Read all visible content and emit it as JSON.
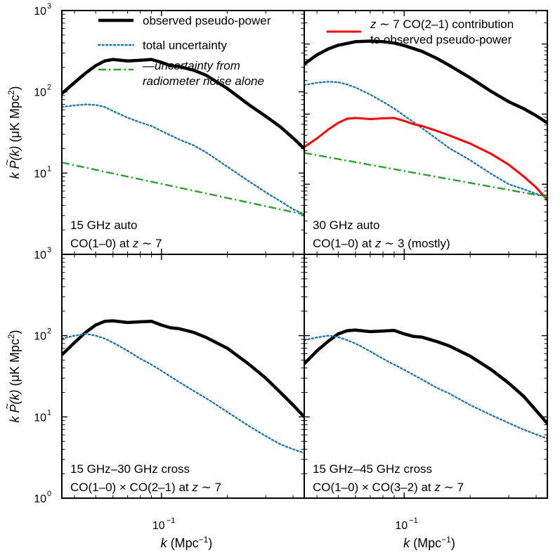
{
  "chart_data": {
    "type": "line",
    "layout": "2x2 grid of log-log panels, shared x axis per column, shared y axis per row",
    "xscale": "log",
    "yscale": "log",
    "xlim": [
      0.035,
      0.45
    ],
    "xlabel_main": "k",
    "xlabel_unit": "(Mpc",
    "xlabel_sup": "−1",
    "xlabel_close": ")",
    "ylabel_main": "k",
    "ylabel_sym": "P",
    "ylabel_arg": "(k)",
    "ylabel_unit": "(μK Mpc",
    "ylabel_sup": "2",
    "ylabel_close": ")",
    "x_tick_label_base": "10",
    "x_tick_label_exp": "−1",
    "x_tick_value": 0.1,
    "colors": {
      "observed": "#000000",
      "uncertainty": "#1f77b4",
      "noise": "#2ca02c",
      "contribution": "#ff0000"
    },
    "legend_left": {
      "position": "top-right of panel 1",
      "entries": [
        {
          "label": "observed pseudo-power",
          "style": "solid-thick",
          "color": "#000000"
        },
        {
          "label": "total uncertainty",
          "style": "dotted",
          "color": "#1f77b4"
        },
        {
          "label_line1": "—uncertainty from",
          "label_line2": "radiometer noise alone",
          "italic": true,
          "style": "dashdot",
          "color": "#2ca02c"
        }
      ]
    },
    "legend_right": {
      "position": "top-right of panel 2",
      "entry": {
        "line1_z": "z",
        "line1_rest": " ∼ 7 CO(2–1) contribution",
        "line2": "to observed pseudo-power",
        "style": "solid",
        "color": "#ff0000"
      }
    },
    "panels": [
      {
        "id": "15ghz-auto",
        "ylim": [
          1,
          1000
        ],
        "y_ticks": [
          {
            "base": "10",
            "exp": "1",
            "value": 10
          },
          {
            "base": "10",
            "exp": "2",
            "value": 100
          },
          {
            "base": "10",
            "exp": "3",
            "value": 1000
          }
        ],
        "label_line1": "15 GHz auto",
        "label_line2_pre": "CO(1–0) at ",
        "label_line2_z": "z",
        "label_line2_post": " ∼ 7",
        "series": [
          {
            "name": "observed pseudo-power",
            "color": "#000000",
            "style": "solid-thick",
            "x": [
              0.035,
              0.04,
              0.045,
              0.05,
              0.055,
              0.06,
              0.07,
              0.08,
              0.09,
              0.1,
              0.11,
              0.12,
              0.14,
              0.16,
              0.2,
              0.25,
              0.3,
              0.35,
              0.4,
              0.45
            ],
            "y": [
              95,
              130,
              170,
              210,
              240,
              250,
              240,
              245,
              250,
              230,
              210,
              205,
              185,
              160,
              110,
              70,
              50,
              37,
              27,
              20
            ]
          },
          {
            "name": "total uncertainty",
            "color": "#1f77b4",
            "style": "dotted",
            "x": [
              0.035,
              0.04,
              0.045,
              0.05,
              0.055,
              0.06,
              0.07,
              0.08,
              0.09,
              0.1,
              0.12,
              0.14,
              0.16,
              0.2,
              0.25,
              0.3,
              0.35,
              0.4,
              0.45
            ],
            "y": [
              65,
              68,
              70,
              69,
              65,
              58,
              48,
              42,
              38,
              33,
              26,
              22,
              18,
              12,
              8,
              5.8,
              4.5,
              3.6,
              3.1
            ]
          },
          {
            "name": "uncertainty from radiometer noise alone",
            "color": "#2ca02c",
            "style": "dashdot",
            "x": [
              0.035,
              0.45
            ],
            "y": [
              13.5,
              3.1
            ]
          }
        ]
      },
      {
        "id": "30ghz-auto",
        "ylim": [
          1,
          3000
        ],
        "label_line1": "30 GHz auto",
        "label_line2_pre": "CO(1–0) at ",
        "label_line2_z": "z",
        "label_line2_post": " ∼ 3 (mostly)",
        "series": [
          {
            "name": "observed pseudo-power",
            "color": "#000000",
            "style": "solid-thick",
            "x": [
              0.035,
              0.04,
              0.045,
              0.05,
              0.06,
              0.07,
              0.08,
              0.09,
              0.1,
              0.12,
              0.14,
              0.16,
              0.2,
              0.25,
              0.3,
              0.35,
              0.4,
              0.45
            ],
            "y": [
              520,
              700,
              850,
              960,
              1080,
              1100,
              1080,
              1030,
              950,
              790,
              630,
              500,
              330,
              210,
              150,
              120,
              95,
              75
            ]
          },
          {
            "name": "total uncertainty",
            "color": "#1f77b4",
            "style": "dotted",
            "x": [
              0.035,
              0.04,
              0.045,
              0.05,
              0.055,
              0.06,
              0.07,
              0.08,
              0.09,
              0.1,
              0.12,
              0.14,
              0.16,
              0.2,
              0.25,
              0.3,
              0.35,
              0.4,
              0.45
            ],
            "y": [
              260,
              280,
              290,
              285,
              265,
              240,
              190,
              150,
              120,
              95,
              64,
              45,
              33,
              22,
              14,
              10,
              8.5,
              7.3,
              6.5
            ]
          },
          {
            "name": "z ~ 7 CO(2-1) contribution",
            "color": "#ff0000",
            "style": "solid",
            "x": [
              0.035,
              0.04,
              0.045,
              0.05,
              0.055,
              0.06,
              0.07,
              0.08,
              0.09,
              0.1,
              0.11,
              0.12,
              0.14,
              0.16,
              0.2,
              0.25,
              0.3,
              0.35,
              0.4,
              0.45
            ],
            "y": [
              34,
              45,
              60,
              75,
              86,
              88,
              85,
              87,
              88,
              80,
              72,
              68,
              58,
              50,
              38,
              27,
              19,
              13,
              9,
              6
            ]
          },
          {
            "name": "uncertainty from radiometer noise alone",
            "color": "#2ca02c",
            "style": "dashdot",
            "x": [
              0.035,
              0.45
            ],
            "y": [
              28,
              6.6
            ]
          }
        ]
      },
      {
        "id": "15-30-cross",
        "ylim": [
          1,
          1000
        ],
        "y_ticks": [
          {
            "base": "10",
            "exp": "0",
            "value": 1
          },
          {
            "base": "10",
            "exp": "1",
            "value": 10
          },
          {
            "base": "10",
            "exp": "2",
            "value": 100
          },
          {
            "base": "10",
            "exp": "3",
            "value": 1000
          }
        ],
        "label_line1": "15 GHz–30 GHz cross",
        "label_line2_pre": "CO(1–0) × CO(2–1) at ",
        "label_line2_z": "z",
        "label_line2_post": " ∼ 7",
        "series": [
          {
            "name": "observed pseudo-power",
            "color": "#000000",
            "style": "solid-thick",
            "x": [
              0.035,
              0.04,
              0.045,
              0.05,
              0.055,
              0.06,
              0.07,
              0.08,
              0.09,
              0.1,
              0.11,
              0.12,
              0.14,
              0.16,
              0.2,
              0.25,
              0.3,
              0.35,
              0.4,
              0.45
            ],
            "y": [
              58,
              82,
              110,
              135,
              150,
              152,
              145,
              148,
              150,
              135,
              125,
              122,
              110,
              95,
              70,
              45,
              30,
              20,
              14,
              10
            ]
          },
          {
            "name": "total uncertainty",
            "color": "#1f77b4",
            "style": "dotted",
            "x": [
              0.035,
              0.04,
              0.045,
              0.05,
              0.055,
              0.06,
              0.07,
              0.08,
              0.09,
              0.1,
              0.12,
              0.14,
              0.16,
              0.2,
              0.25,
              0.3,
              0.35,
              0.4,
              0.45
            ],
            "y": [
              92,
              100,
              105,
              100,
              92,
              82,
              65,
              52,
              44,
              37,
              27,
              21,
              17,
              11.5,
              7.8,
              5.8,
              4.6,
              4,
              3.6
            ]
          }
        ]
      },
      {
        "id": "15-45-cross",
        "ylim": [
          1,
          1000
        ],
        "label_line1": "15 GHz–45 GHz cross",
        "label_line2_pre": "CO(1–0) × CO(3–2) at ",
        "label_line2_z": "z",
        "label_line2_post": " ∼ 7",
        "series": [
          {
            "name": "observed pseudo-power",
            "color": "#000000",
            "style": "solid-thick",
            "x": [
              0.035,
              0.04,
              0.045,
              0.05,
              0.055,
              0.06,
              0.07,
              0.08,
              0.09,
              0.1,
              0.11,
              0.12,
              0.14,
              0.16,
              0.2,
              0.25,
              0.3,
              0.35,
              0.4,
              0.45
            ],
            "y": [
              45,
              65,
              85,
              105,
              115,
              117,
              112,
              114,
              116,
              105,
              98,
              96,
              85,
              75,
              56,
              38,
              26,
              18,
              12,
              8.3
            ]
          },
          {
            "name": "total uncertainty",
            "color": "#1f77b4",
            "style": "dotted",
            "x": [
              0.035,
              0.04,
              0.045,
              0.05,
              0.055,
              0.06,
              0.07,
              0.08,
              0.09,
              0.1,
              0.12,
              0.14,
              0.16,
              0.2,
              0.25,
              0.3,
              0.35,
              0.4,
              0.45
            ],
            "y": [
              88,
              95,
              100,
              96,
              88,
              80,
              64,
              52,
              44,
              38,
              29,
              23,
              19.5,
              14,
              10.5,
              8.4,
              7,
              6.1,
              5.4
            ]
          }
        ]
      }
    ]
  }
}
